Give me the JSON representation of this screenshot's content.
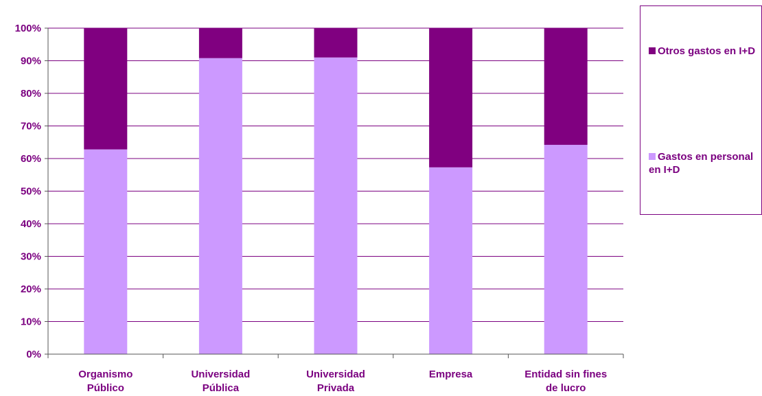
{
  "chart_data": {
    "type": "bar",
    "stacked": true,
    "percent_scale": true,
    "categories": [
      "Organismo Público",
      "Universidad Pública",
      "Universidad Privada",
      "Empresa",
      "Entidad sin fines de lucro"
    ],
    "series": [
      {
        "name": "Gastos en personal en I+D",
        "color": "#cc99ff",
        "values": [
          62.8,
          90.8,
          91.0,
          57.3,
          64.2
        ]
      },
      {
        "name": "Otros gastos en I+D",
        "color": "#800080",
        "values": [
          37.2,
          9.2,
          9.0,
          42.7,
          35.8
        ]
      }
    ],
    "ylim": [
      0,
      100
    ],
    "yticks": [
      "0%",
      "10%",
      "20%",
      "30%",
      "40%",
      "50%",
      "60%",
      "70%",
      "80%",
      "90%",
      "100%"
    ],
    "grid": true,
    "legend_position": "right"
  },
  "legend": {
    "items": [
      {
        "label": "Otros gastos en I+D",
        "color": "#800080"
      },
      {
        "label": "Gastos en personal en I+D",
        "color": "#cc99ff"
      }
    ]
  },
  "text_color": "#7b0080"
}
